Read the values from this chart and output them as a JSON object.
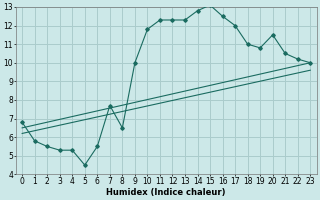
{
  "xlabel": "Humidex (Indice chaleur)",
  "bg_color": "#cce8e8",
  "grid_color": "#aacccc",
  "line_color": "#1a6b60",
  "xlim": [
    -0.5,
    23.5
  ],
  "ylim": [
    4,
    13
  ],
  "xticks": [
    0,
    1,
    2,
    3,
    4,
    5,
    6,
    7,
    8,
    9,
    10,
    11,
    12,
    13,
    14,
    15,
    16,
    17,
    18,
    19,
    20,
    21,
    22,
    23
  ],
  "yticks": [
    4,
    5,
    6,
    7,
    8,
    9,
    10,
    11,
    12,
    13
  ],
  "curve1_x": [
    0,
    1,
    2,
    3,
    4,
    5,
    6,
    7,
    8,
    9,
    10,
    11,
    12,
    13,
    14,
    15,
    16,
    17,
    18,
    19,
    20,
    21,
    22,
    23
  ],
  "curve1_y": [
    6.8,
    5.8,
    5.5,
    5.3,
    5.3,
    4.5,
    5.5,
    7.7,
    6.5,
    10.0,
    11.8,
    12.3,
    12.3,
    12.3,
    12.8,
    13.1,
    12.5,
    12.0,
    11.0,
    10.8,
    11.5,
    10.5,
    10.2,
    10.0
  ],
  "line1_x": [
    0,
    23
  ],
  "line1_y": [
    6.5,
    10.0
  ],
  "line2_x": [
    0,
    23
  ],
  "line2_y": [
    6.2,
    9.6
  ]
}
